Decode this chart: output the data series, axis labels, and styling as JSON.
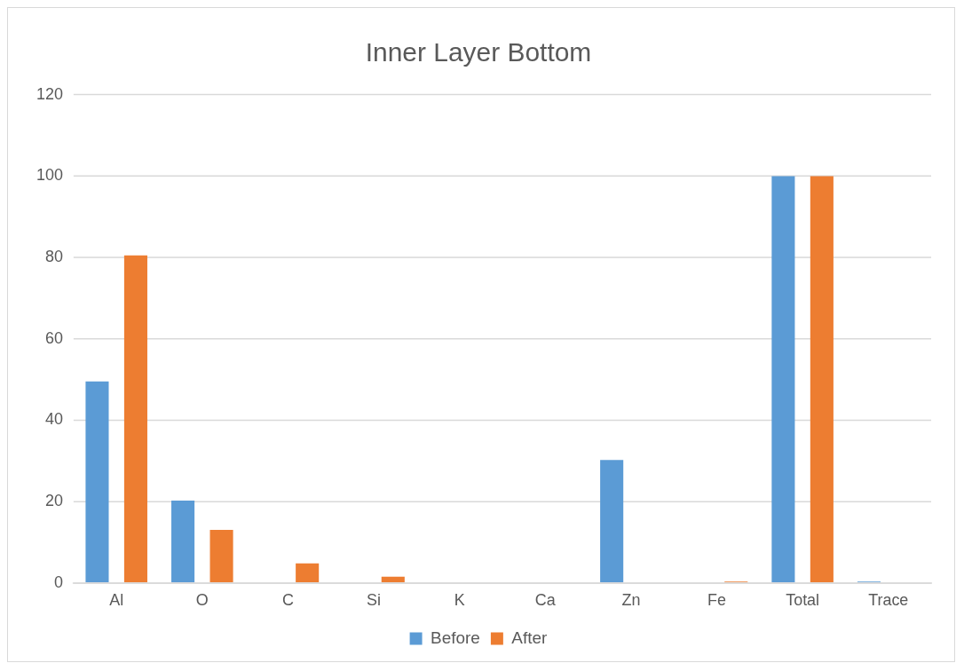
{
  "chart_data": {
    "type": "bar",
    "title": "Inner Layer Bottom",
    "categories": [
      "Al",
      "O",
      "C",
      "Si",
      "K",
      "Ca",
      "Zn",
      "Fe",
      "Total",
      "Trace"
    ],
    "series": [
      {
        "name": "Before",
        "color": "#5b9bd5",
        "values": [
          49.5,
          20.2,
          0,
          0,
          0,
          0,
          30.2,
          0,
          100,
          0.3
        ]
      },
      {
        "name": "After",
        "color": "#ed7d31",
        "values": [
          80.5,
          13,
          4.8,
          1.5,
          0,
          0,
          0,
          0.3,
          100,
          0
        ]
      }
    ],
    "ylim": [
      0,
      120
    ],
    "yticks": [
      0,
      20,
      40,
      60,
      80,
      100,
      120
    ],
    "grid": "y",
    "legend": "bottom"
  }
}
